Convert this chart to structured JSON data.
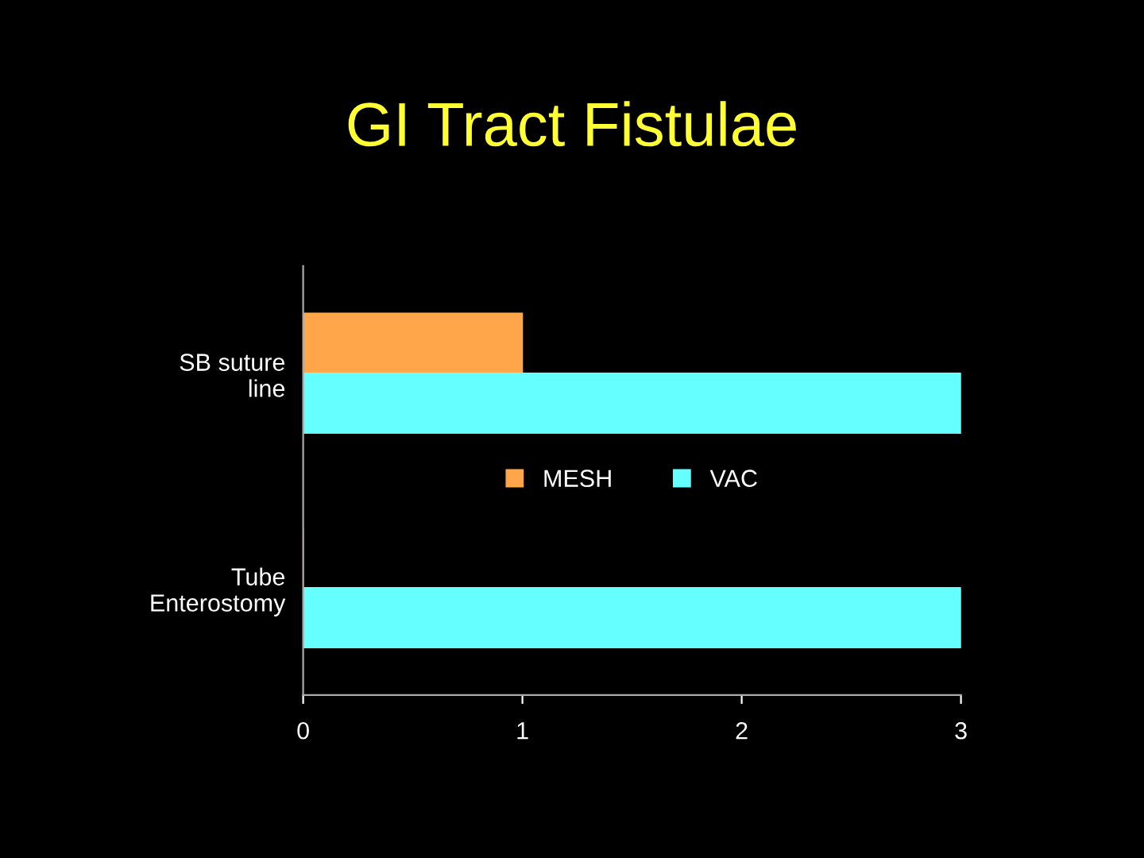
{
  "chart_data": {
    "type": "bar",
    "orientation": "horizontal",
    "title": "GI Tract Fistulae",
    "categories": [
      "SB suture\nline",
      "Tube\nEnterostomy"
    ],
    "series": [
      {
        "name": "MESH",
        "color": "#ffa54a",
        "values": [
          1,
          0
        ]
      },
      {
        "name": "VAC",
        "color": "#66ffff",
        "values": [
          3,
          3
        ]
      }
    ],
    "xlim": [
      0,
      3
    ],
    "xticks": [
      0,
      1,
      2,
      3
    ],
    "grid": false,
    "legend": "center"
  }
}
